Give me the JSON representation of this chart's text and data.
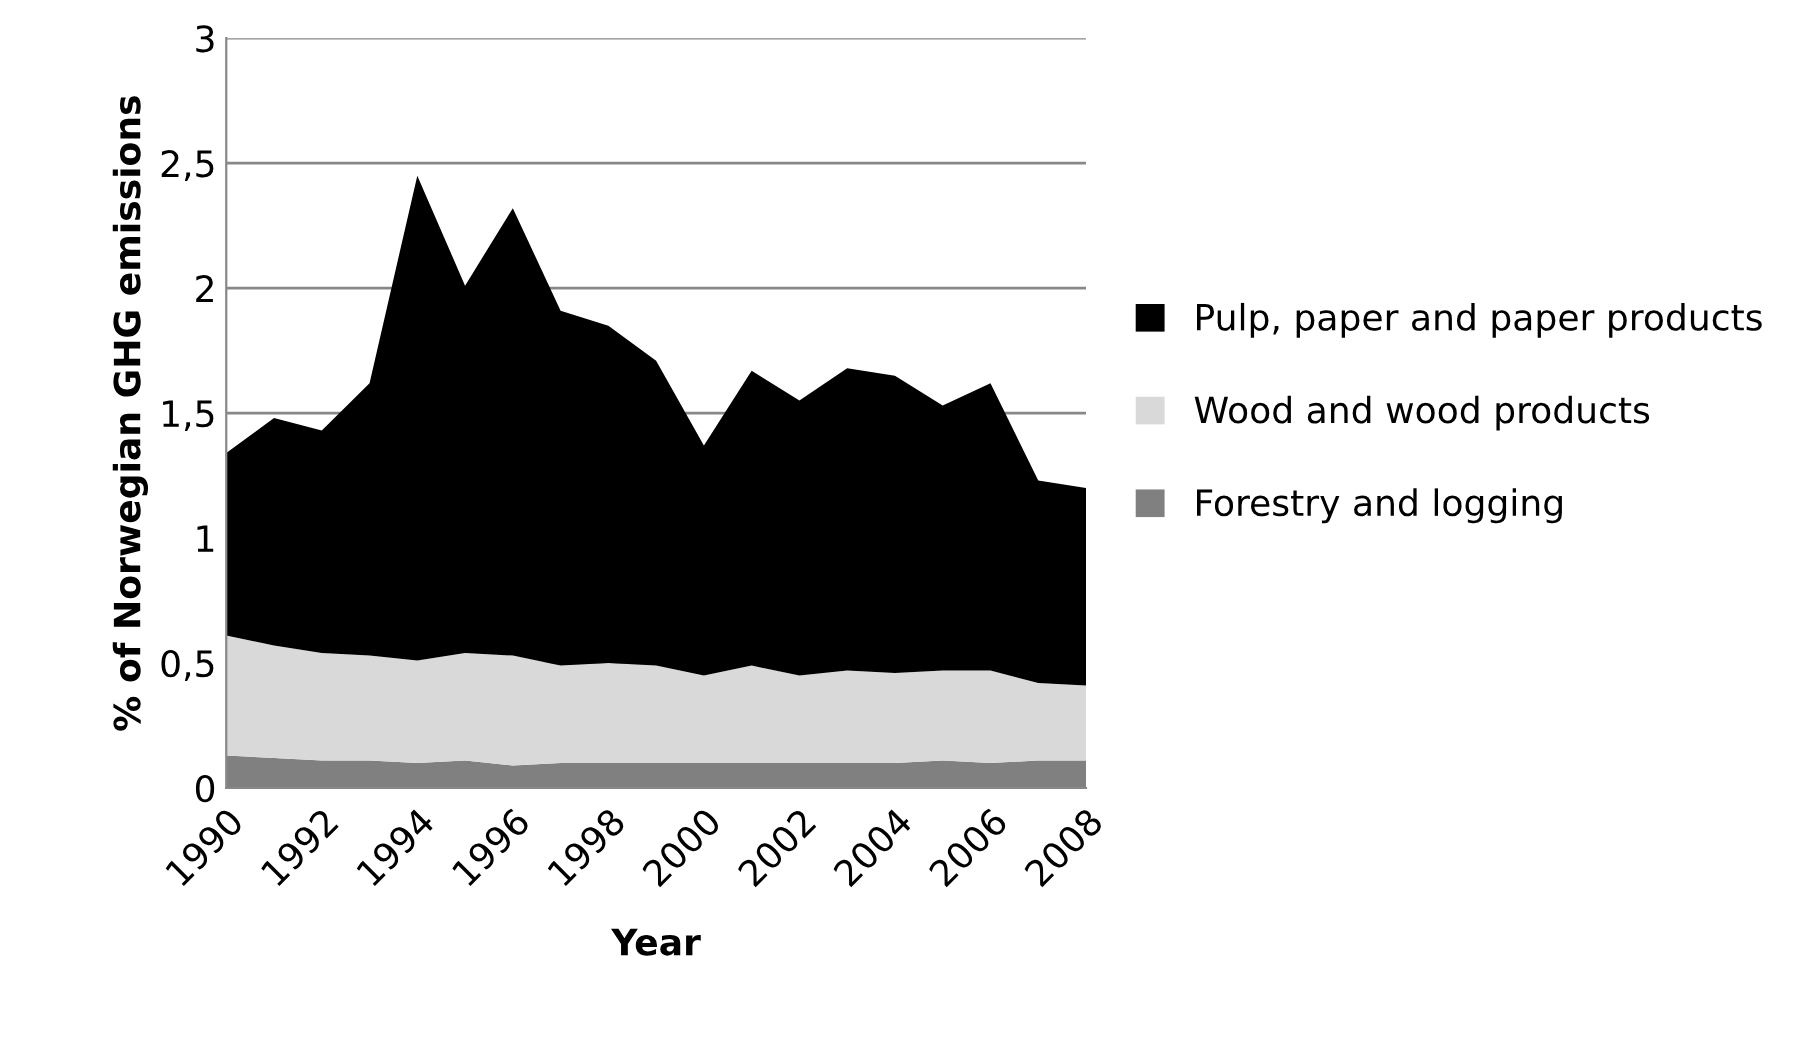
{
  "chart_data": {
    "type": "area",
    "stacked": true,
    "xlabel": "Year",
    "ylabel": "% of Norwegian GHG emissions",
    "x": [
      1990,
      1991,
      1992,
      1993,
      1994,
      1995,
      1996,
      1997,
      1998,
      1999,
      2000,
      2001,
      2002,
      2003,
      2004,
      2005,
      2006,
      2007,
      2008
    ],
    "series": [
      {
        "name": "Forestry and logging",
        "color": "#808080",
        "values": [
          0.13,
          0.12,
          0.11,
          0.11,
          0.1,
          0.11,
          0.09,
          0.1,
          0.1,
          0.1,
          0.1,
          0.1,
          0.1,
          0.1,
          0.1,
          0.11,
          0.1,
          0.11,
          0.11
        ]
      },
      {
        "name": "Wood and wood products",
        "color": "#d9d9d9",
        "values": [
          0.48,
          0.45,
          0.43,
          0.42,
          0.41,
          0.43,
          0.44,
          0.39,
          0.4,
          0.39,
          0.35,
          0.39,
          0.35,
          0.37,
          0.36,
          0.36,
          0.37,
          0.31,
          0.3
        ]
      },
      {
        "name": "Pulp, paper and paper products",
        "color": "#000000",
        "values": [
          0.73,
          0.91,
          0.89,
          1.09,
          1.94,
          1.47,
          1.79,
          1.42,
          1.35,
          1.22,
          0.92,
          1.18,
          1.1,
          1.21,
          1.19,
          1.06,
          1.15,
          0.81,
          0.79
        ]
      }
    ],
    "xlim": [
      1990,
      2008
    ],
    "xticks": [
      1990,
      1992,
      1994,
      1996,
      1998,
      2000,
      2002,
      2004,
      2006,
      2008
    ],
    "ylim": [
      0,
      3
    ],
    "yticks": [
      0,
      {
        "value": 0.5,
        "label": "0,5"
      },
      1,
      {
        "value": 1.5,
        "label": "1,5"
      },
      2,
      {
        "value": 2.5,
        "label": "2,5"
      },
      3
    ],
    "grid": "y",
    "legend": "right"
  }
}
